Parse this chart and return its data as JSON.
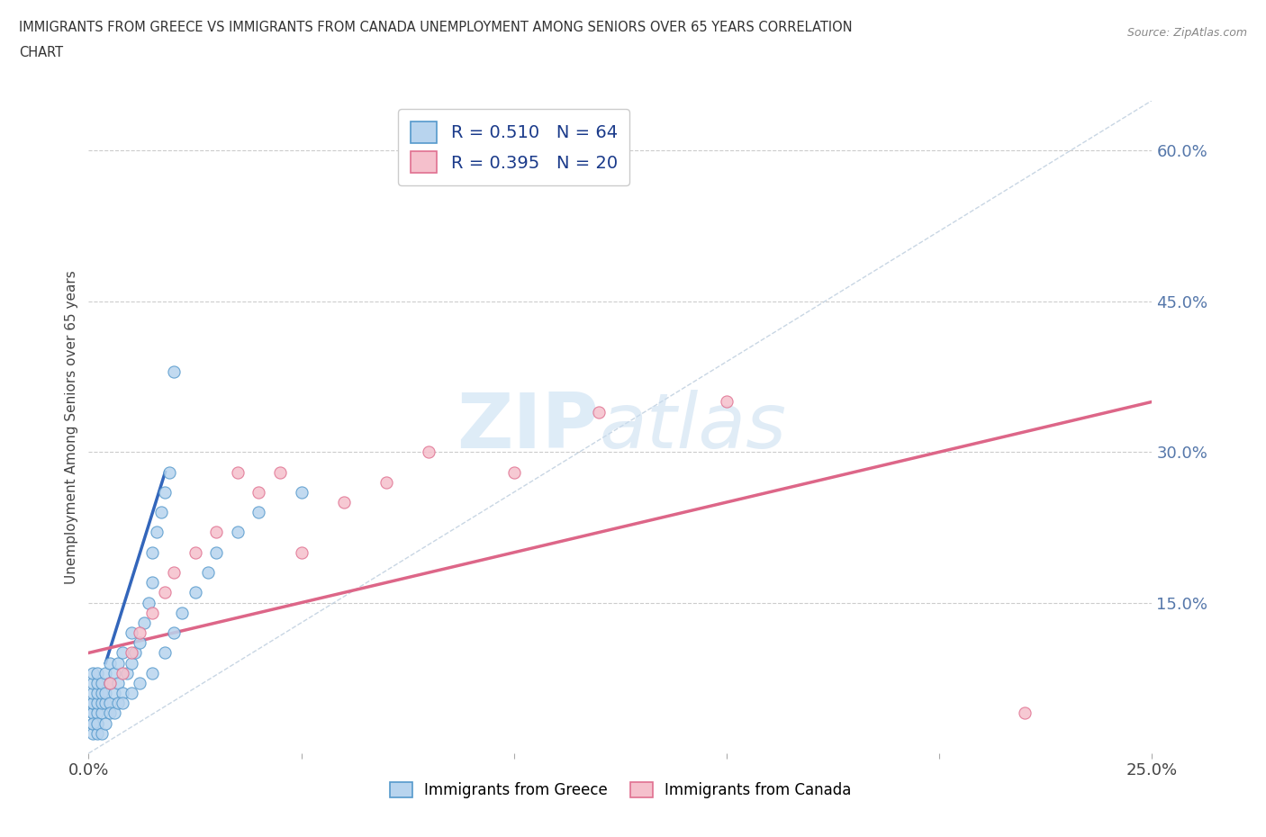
{
  "title_line1": "IMMIGRANTS FROM GREECE VS IMMIGRANTS FROM CANADA UNEMPLOYMENT AMONG SENIORS OVER 65 YEARS CORRELATION",
  "title_line2": "CHART",
  "source_text": "Source: ZipAtlas.com",
  "ylabel": "Unemployment Among Seniors over 65 years",
  "xlim": [
    0.0,
    0.25
  ],
  "ylim": [
    0.0,
    0.65
  ],
  "x_tick_positions": [
    0.0,
    0.05,
    0.1,
    0.15,
    0.2,
    0.25
  ],
  "x_tick_labels": [
    "0.0%",
    "",
    "",
    "",
    "",
    "25.0%"
  ],
  "y_tick_positions": [
    0.0,
    0.15,
    0.3,
    0.45,
    0.6
  ],
  "y_tick_labels": [
    "",
    "15.0%",
    "30.0%",
    "45.0%",
    "60.0%"
  ],
  "color_greece_fill": "#b8d4ee",
  "color_greece_edge": "#5599cc",
  "color_canada_fill": "#f5c0cc",
  "color_canada_edge": "#e07090",
  "color_line_greece": "#3366bb",
  "color_line_canada": "#dd6688",
  "color_diagonal": "#bbccdd",
  "bg_color": "#ffffff",
  "grid_color": "#cccccc",
  "watermark_zip_color": "#d0e4f5",
  "watermark_atlas_color": "#c8ddf0",
  "greece_x": [
    0.001,
    0.001,
    0.001,
    0.001,
    0.001,
    0.001,
    0.001,
    0.001,
    0.002,
    0.002,
    0.002,
    0.002,
    0.002,
    0.002,
    0.003,
    0.003,
    0.003,
    0.003,
    0.004,
    0.004,
    0.004,
    0.005,
    0.005,
    0.005,
    0.006,
    0.006,
    0.007,
    0.007,
    0.008,
    0.008,
    0.009,
    0.01,
    0.01,
    0.011,
    0.012,
    0.013,
    0.014,
    0.015,
    0.015,
    0.016,
    0.017,
    0.018,
    0.019,
    0.02,
    0.001,
    0.001,
    0.002,
    0.002,
    0.003,
    0.004,
    0.005,
    0.006,
    0.007,
    0.008,
    0.01,
    0.012,
    0.015,
    0.018,
    0.02,
    0.022,
    0.025,
    0.028,
    0.03,
    0.035,
    0.04,
    0.05
  ],
  "greece_y": [
    0.03,
    0.04,
    0.04,
    0.05,
    0.05,
    0.06,
    0.07,
    0.08,
    0.03,
    0.04,
    0.05,
    0.06,
    0.07,
    0.08,
    0.04,
    0.05,
    0.06,
    0.07,
    0.05,
    0.06,
    0.08,
    0.05,
    0.07,
    0.09,
    0.06,
    0.08,
    0.07,
    0.09,
    0.06,
    0.1,
    0.08,
    0.09,
    0.12,
    0.1,
    0.11,
    0.13,
    0.15,
    0.17,
    0.2,
    0.22,
    0.24,
    0.26,
    0.28,
    0.38,
    0.02,
    0.03,
    0.02,
    0.03,
    0.02,
    0.03,
    0.04,
    0.04,
    0.05,
    0.05,
    0.06,
    0.07,
    0.08,
    0.1,
    0.12,
    0.14,
    0.16,
    0.18,
    0.2,
    0.22,
    0.24,
    0.26
  ],
  "canada_x": [
    0.005,
    0.008,
    0.01,
    0.012,
    0.015,
    0.018,
    0.02,
    0.025,
    0.03,
    0.035,
    0.04,
    0.045,
    0.05,
    0.06,
    0.07,
    0.08,
    0.1,
    0.12,
    0.15,
    0.22
  ],
  "canada_y": [
    0.07,
    0.08,
    0.1,
    0.12,
    0.14,
    0.16,
    0.18,
    0.2,
    0.22,
    0.28,
    0.26,
    0.28,
    0.2,
    0.25,
    0.27,
    0.3,
    0.28,
    0.34,
    0.35,
    0.04
  ],
  "greece_line_x": [
    0.004,
    0.018
  ],
  "greece_line_y": [
    0.09,
    0.28
  ],
  "canada_line_x": [
    0.0,
    0.25
  ],
  "canada_line_y": [
    0.1,
    0.35
  ]
}
